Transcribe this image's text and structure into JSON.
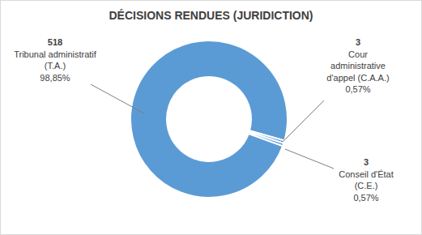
{
  "chart_data": {
    "type": "donut",
    "title": "DÉCISIONS RENDUES (JURIDICTION)",
    "categories": [
      "Tribunal administratif (T.A.)",
      "Cour administrative d'appel (C.A.A.)",
      "Conseil d'État (C.E.)"
    ],
    "values": [
      518,
      3,
      3
    ],
    "percentages": [
      98.85,
      0.57,
      0.57
    ],
    "percentage_labels": [
      "98,85%",
      "0,57%",
      "0,57%"
    ],
    "color": "#5b9bd5"
  }
}
